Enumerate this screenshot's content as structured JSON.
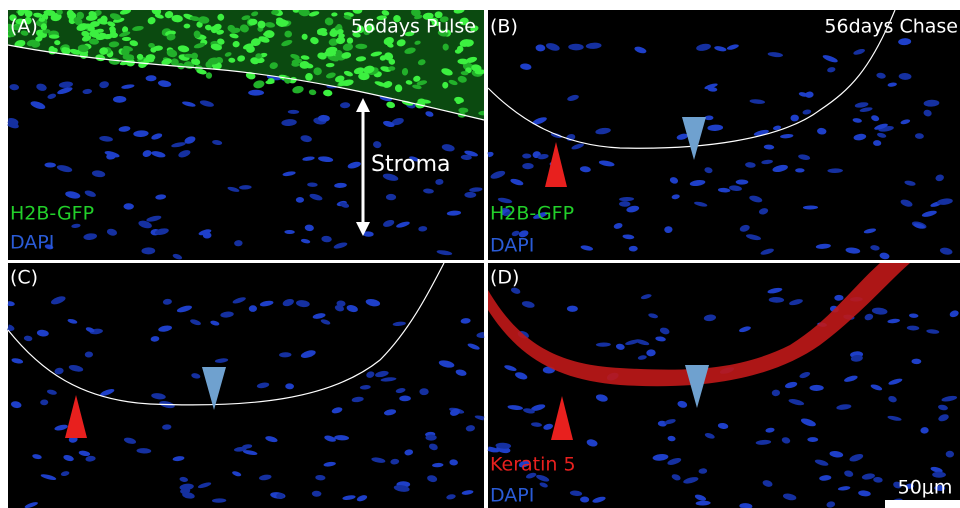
{
  "panels": [
    {
      "label": "(A)",
      "title": "56days Pulse",
      "annotation": "Stroma",
      "stains": [
        "H2B-GFP",
        "DAPI"
      ]
    },
    {
      "label": "(B)",
      "title": "56days Chase",
      "stains": [
        "H2B-GFP",
        "DAPI"
      ]
    },
    {
      "label": "(C)"
    },
    {
      "label": "(D)",
      "stains": [
        "Keratin 5",
        "DAPI"
      ]
    }
  ],
  "scale_bar": "50μm"
}
